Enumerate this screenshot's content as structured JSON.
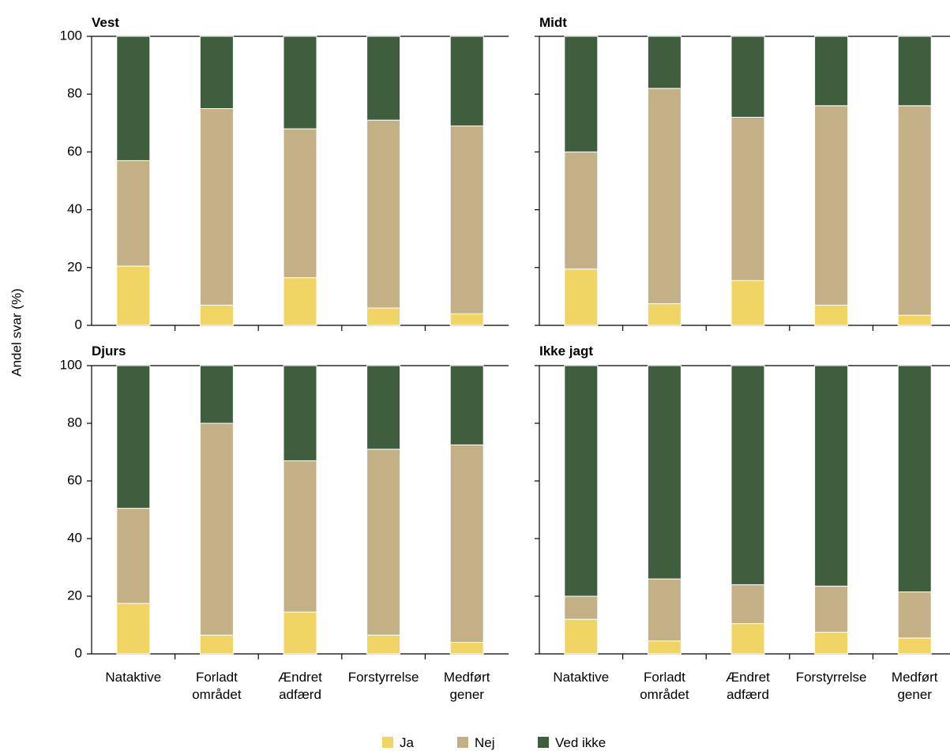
{
  "chart_data": {
    "type": "bar",
    "stacked": true,
    "ylabel": "Andel svar (%)",
    "ylim": [
      0,
      100
    ],
    "yticks": [
      0,
      20,
      40,
      60,
      80,
      100
    ],
    "categories": [
      [
        "Nataktive"
      ],
      [
        "Forladt",
        "området"
      ],
      [
        "Ændret",
        "adfærd"
      ],
      [
        "Forstyrrelse"
      ],
      [
        "Medført",
        "gener"
      ]
    ],
    "legend": {
      "position": "bottom-center",
      "entries": [
        {
          "name": "Ja",
          "color": "#f0d564"
        },
        {
          "name": "Nej",
          "color": "#c4b087"
        },
        {
          "name": "Ved ikke",
          "color": "#3e5e3e"
        }
      ]
    },
    "panels": [
      {
        "title": "Vest",
        "series": [
          {
            "name": "Ja",
            "values": [
              20.5,
              7,
              16.5,
              6,
              4
            ]
          },
          {
            "name": "Nej",
            "values": [
              36.5,
              68,
              51.5,
              65,
              65
            ]
          },
          {
            "name": "Ved ikke",
            "values": [
              43,
              25,
              32,
              29,
              31
            ]
          }
        ]
      },
      {
        "title": "Midt",
        "series": [
          {
            "name": "Ja",
            "values": [
              19.5,
              7.5,
              15.5,
              7,
              3.5
            ]
          },
          {
            "name": "Nej",
            "values": [
              40.5,
              74.5,
              56.5,
              69,
              72.5
            ]
          },
          {
            "name": "Ved ikke",
            "values": [
              40,
              18,
              28,
              24,
              24
            ]
          }
        ]
      },
      {
        "title": "Djurs",
        "series": [
          {
            "name": "Ja",
            "values": [
              17.5,
              6.5,
              14.5,
              6.5,
              4
            ]
          },
          {
            "name": "Nej",
            "values": [
              33,
              73.5,
              52.5,
              64.5,
              68.5
            ]
          },
          {
            "name": "Ved ikke",
            "values": [
              49.5,
              20,
              33,
              29,
              27.5
            ]
          }
        ]
      },
      {
        "title": "Ikke jagt",
        "series": [
          {
            "name": "Ja",
            "values": [
              12,
              4.5,
              10.5,
              7.5,
              5.5
            ]
          },
          {
            "name": "Nej",
            "values": [
              8,
              21.5,
              13.5,
              16,
              16
            ]
          },
          {
            "name": "Ved ikke",
            "values": [
              80,
              74,
              76,
              76.5,
              78.5
            ]
          }
        ]
      }
    ]
  }
}
